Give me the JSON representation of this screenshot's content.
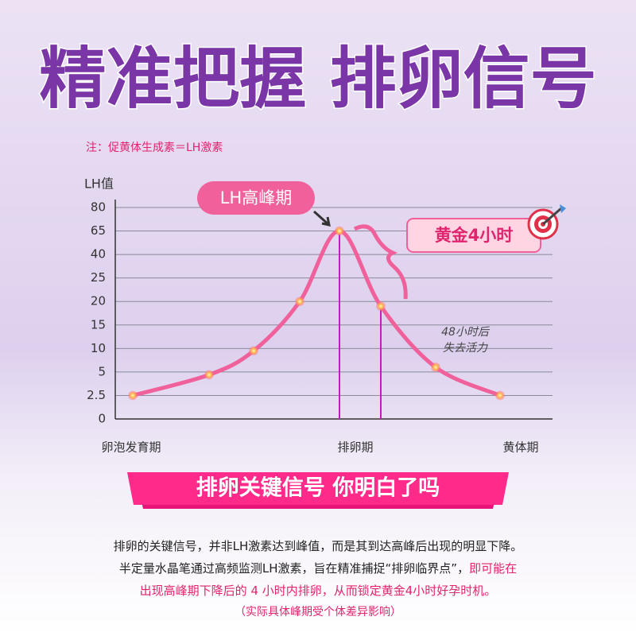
{
  "header": {
    "title": "精准把握  排卵信号",
    "note": "注：促黄体生成素＝LH激素"
  },
  "chart_data": {
    "type": "line",
    "y_label": "LH值",
    "categories": [
      null,
      null,
      null,
      null,
      null,
      null,
      null,
      null
    ],
    "x_labels": [
      "卵泡发育期",
      "排卵期",
      "黄体期"
    ],
    "series": [
      {
        "name": "LH值",
        "color": "#f0609a",
        "values": [
          2.5,
          4.7,
          9.5,
          20,
          65,
          19,
          6,
          2.5
        ]
      }
    ],
    "ylim": [
      0,
      80
    ],
    "yticks": [
      0,
      2.5,
      5,
      10,
      15,
      20,
      25,
      40,
      65,
      80
    ],
    "grid": true,
    "annotations": {
      "peak": "LH高峰期",
      "golden": "黄金4小时",
      "after_line1": "48小时后",
      "after_line2": "失去活力"
    }
  },
  "banner": "排卵关键信号 你明白了吗",
  "body": {
    "lines": [
      [
        {
          "text": "排卵的关键信号，并非LH激素达到峰值，而是其到达高峰后出现的明显下降。",
          "highlight": false
        }
      ],
      [
        {
          "text": "半定量水晶笔通过高频监测LH激素，旨在精准捕捉“排卵临界点”，",
          "highlight": false
        },
        {
          "text": "即可能在",
          "highlight": true
        }
      ],
      [
        {
          "text": "出现高峰期下降后的 4 小时内排卵，从而锁定黄金4小时好孕时机。",
          "highlight": true
        }
      ]
    ],
    "footnote": "（实际具体峰期受个体差异影响）"
  }
}
